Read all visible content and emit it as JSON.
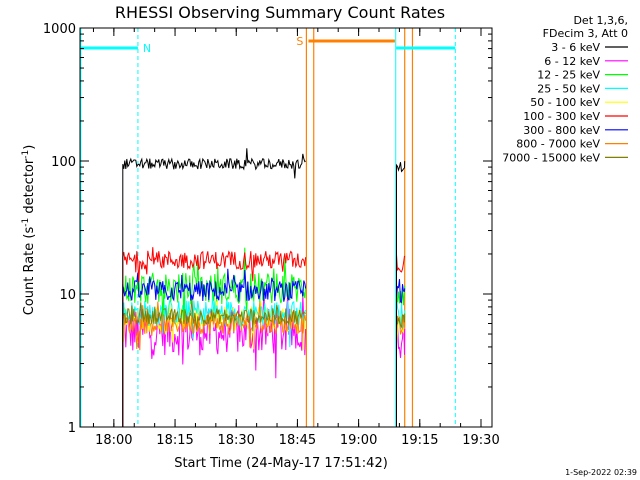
{
  "chart_data": {
    "type": "line",
    "title": "RHESSI Observing Summary Count Rates",
    "xlabel": "Start Time (24-May-17 17:51:42)",
    "ylabel_parts": [
      "Count Rate (s",
      "-1",
      " detector",
      "-1",
      ")"
    ],
    "ylabel": "Count Rate (s^-1 detector^-1)",
    "yscale": "log",
    "ylim": [
      1,
      1000
    ],
    "xlim_minutes_after_start": [
      0,
      101
    ],
    "x_ticks": [
      {
        "label": "18:00",
        "minute": 8.3
      },
      {
        "label": "18:15",
        "minute": 23.3
      },
      {
        "label": "18:30",
        "minute": 38.3
      },
      {
        "label": "18:45",
        "minute": 53.3
      },
      {
        "label": "19:00",
        "minute": 68.3
      },
      {
        "label": "19:15",
        "minute": 83.3
      },
      {
        "label": "19:30",
        "minute": 98.3
      }
    ],
    "y_ticks": [
      {
        "label": "1",
        "value": 1
      },
      {
        "label": "10",
        "value": 10
      },
      {
        "label": "100",
        "value": 100
      },
      {
        "label": "1000",
        "value": 1000
      }
    ],
    "legend_header": [
      "Det 1,3,6,",
      "FDecim 3, Att 0"
    ],
    "series": [
      {
        "name": "3 - 6 keV",
        "color": "#000000",
        "level": 95,
        "noise": 0.04
      },
      {
        "name": "6 - 12 keV",
        "color": "#ff00ff",
        "level": 5.2,
        "noise": 0.18
      },
      {
        "name": "12 - 25 keV",
        "color": "#00ff00",
        "level": 11,
        "noise": 0.12
      },
      {
        "name": "25 - 50 keV",
        "color": "#00ffff",
        "level": 7.2,
        "noise": 0.1
      },
      {
        "name": "50 - 100 keV",
        "color": "#ffff00",
        "level": 6.5,
        "noise": 0.1
      },
      {
        "name": "100 - 300 keV",
        "color": "#ff0000",
        "level": 18,
        "noise": 0.07
      },
      {
        "name": "300 - 800 keV",
        "color": "#0000ff",
        "level": 10.5,
        "noise": 0.08
      },
      {
        "name": "800 - 7000 keV",
        "color": "#ff8000",
        "level": 6,
        "noise": 0.08
      },
      {
        "name": "7000 - 15000 keV",
        "color": "#808000",
        "level": 6.8,
        "noise": 0.06
      }
    ],
    "segments_minutes": [
      {
        "start": 10.5,
        "end": 55.3
      },
      {
        "start": 77.6,
        "end": 79.6
      }
    ],
    "night_bars": [
      {
        "label": "N",
        "start": 0,
        "end": 14.2,
        "color": "#00ffff"
      },
      {
        "label": "",
        "start": 77.5,
        "end": 92.0,
        "color": "#00ffff"
      }
    ],
    "saa_bars": [
      {
        "label": "S",
        "start": 56.0,
        "end": 77.2,
        "color": "#ff8000"
      }
    ],
    "night_dashed_lines_minutes": [
      14.2,
      92.0
    ],
    "night_solid_lines_minutes": [
      0.2,
      77.4
    ],
    "saa_lines_minutes": [
      55.5,
      57.3,
      79.6,
      81.5
    ]
  },
  "footer": {
    "timestamp": "1-Sep-2022 02:39"
  }
}
